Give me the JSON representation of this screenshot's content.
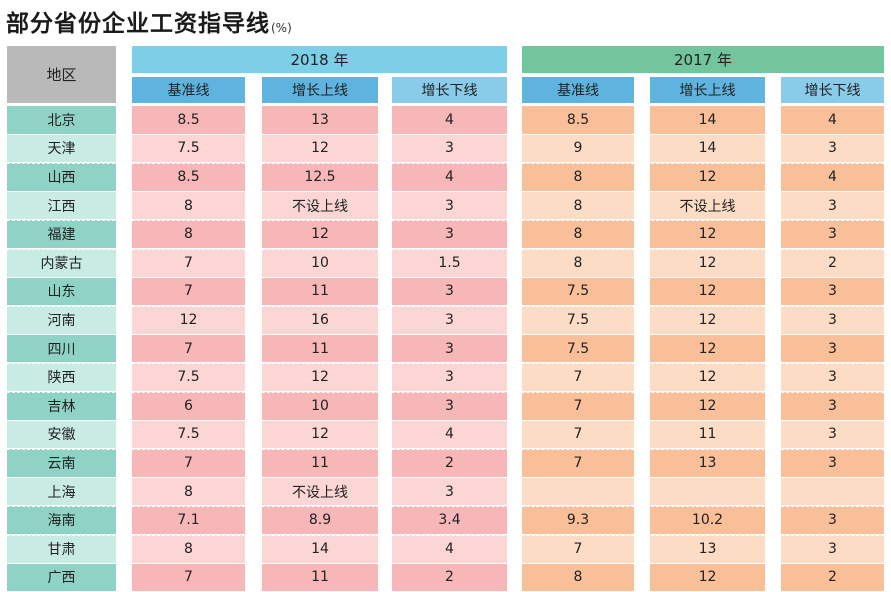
{
  "title": "部分省份企业工资指导线",
  "unit": "(%)",
  "chart_data": {
    "type": "table",
    "row_header": "地区",
    "groups": [
      {
        "year": "2018 年",
        "columns": [
          "基准线",
          "增长上线",
          "增长下线"
        ]
      },
      {
        "year": "2017 年",
        "columns": [
          "基准线",
          "增长上线",
          "增长下线"
        ]
      }
    ],
    "rows": [
      {
        "region": "北京",
        "y2018": [
          "8.5",
          "13",
          "4"
        ],
        "y2017": [
          "8.5",
          "14",
          "4"
        ]
      },
      {
        "region": "天津",
        "y2018": [
          "7.5",
          "12",
          "3"
        ],
        "y2017": [
          "9",
          "14",
          "3"
        ]
      },
      {
        "region": "山西",
        "y2018": [
          "8.5",
          "12.5",
          "4"
        ],
        "y2017": [
          "8",
          "12",
          "4"
        ]
      },
      {
        "region": "江西",
        "y2018": [
          "8",
          "不设上线",
          "3"
        ],
        "y2017": [
          "8",
          "不设上线",
          "3"
        ]
      },
      {
        "region": "福建",
        "y2018": [
          "8",
          "12",
          "3"
        ],
        "y2017": [
          "8",
          "12",
          "3"
        ]
      },
      {
        "region": "内蒙古",
        "y2018": [
          "7",
          "10",
          "1.5"
        ],
        "y2017": [
          "8",
          "12",
          "2"
        ]
      },
      {
        "region": "山东",
        "y2018": [
          "7",
          "11",
          "3"
        ],
        "y2017": [
          "7.5",
          "12",
          "3"
        ]
      },
      {
        "region": "河南",
        "y2018": [
          "12",
          "16",
          "3"
        ],
        "y2017": [
          "7.5",
          "12",
          "3"
        ]
      },
      {
        "region": "四川",
        "y2018": [
          "7",
          "11",
          "3"
        ],
        "y2017": [
          "7.5",
          "12",
          "3"
        ]
      },
      {
        "region": "陕西",
        "y2018": [
          "7.5",
          "12",
          "3"
        ],
        "y2017": [
          "7",
          "12",
          "3"
        ]
      },
      {
        "region": "吉林",
        "y2018": [
          "6",
          "10",
          "3"
        ],
        "y2017": [
          "7",
          "12",
          "3"
        ]
      },
      {
        "region": "安徽",
        "y2018": [
          "7.5",
          "12",
          "4"
        ],
        "y2017": [
          "7",
          "11",
          "3"
        ]
      },
      {
        "region": "云南",
        "y2018": [
          "7",
          "11",
          "2"
        ],
        "y2017": [
          "7",
          "13",
          "3"
        ]
      },
      {
        "region": "上海",
        "y2018": [
          "8",
          "不设上线",
          "3"
        ],
        "y2017": [
          "",
          "",
          ""
        ]
      },
      {
        "region": "海南",
        "y2018": [
          "7.1",
          "8.9",
          "3.4"
        ],
        "y2017": [
          "9.3",
          "10.2",
          "3"
        ]
      },
      {
        "region": "甘肃",
        "y2018": [
          "8",
          "14",
          "4"
        ],
        "y2017": [
          "7",
          "13",
          "3"
        ]
      },
      {
        "region": "广西",
        "y2018": [
          "7",
          "11",
          "2"
        ],
        "y2017": [
          "8",
          "12",
          "2"
        ]
      }
    ]
  }
}
